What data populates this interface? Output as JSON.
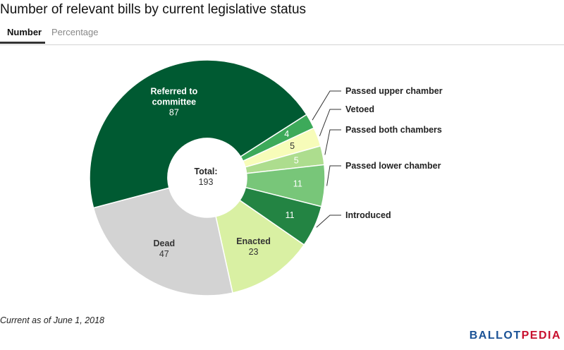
{
  "title": "Number of relevant bills by current legislative status",
  "tabs": [
    {
      "label": "Number",
      "active": true
    },
    {
      "label": "Percentage",
      "active": false
    }
  ],
  "footnote": "Current as of June 1, 2018",
  "brand": {
    "part1": "BALLOT",
    "part2": "PEDIA",
    "color1": "#1a5296",
    "color2": "#c8102e"
  },
  "chart_data": {
    "type": "pie",
    "donut": true,
    "center_label": {
      "title": "Total:",
      "value": "193"
    },
    "slices": [
      {
        "label": "Passed upper chamber",
        "value": 4,
        "color": "#3daa5a",
        "callout": true,
        "value_text_color": "#ffffff"
      },
      {
        "label": "Vetoed",
        "value": 5,
        "color": "#f7fcb9",
        "callout": true,
        "value_text_color": "#333333"
      },
      {
        "label": "Passed both chambers",
        "value": 5,
        "color": "#addd8e",
        "callout": true,
        "value_text_color": "#ffffff"
      },
      {
        "label": "Passed lower chamber",
        "value": 11,
        "color": "#78c679",
        "callout": true,
        "value_text_color": "#ffffff"
      },
      {
        "label": "Introduced",
        "value": 11,
        "color": "#238443",
        "callout": true,
        "value_text_color": "#ffffff"
      },
      {
        "label": "Enacted",
        "value": 23,
        "color": "#d9f0a3",
        "callout": false,
        "value_text_color": "#333333"
      },
      {
        "label": "Dead",
        "value": 47,
        "color": "#d3d3d3",
        "callout": false,
        "value_text_color": "#333333"
      },
      {
        "label": "Referred to committee",
        "label_lines": [
          "Referred to",
          "committee"
        ],
        "value": 87,
        "color": "#005a32",
        "callout": false,
        "value_text_color": "#ffffff"
      }
    ]
  }
}
